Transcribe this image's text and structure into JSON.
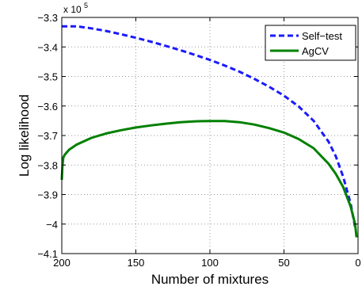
{
  "chart_data": {
    "type": "line",
    "xlabel": "Number of mixtures",
    "ylabel": "Log likelihood",
    "y_multiplier_label": "x 10",
    "y_multiplier_exponent": "5",
    "xlim": [
      200,
      0
    ],
    "x_reversed": true,
    "ylim": [
      -4.1,
      -3.3
    ],
    "xticks": [
      200,
      150,
      100,
      50,
      0
    ],
    "yticks": [
      -3.3,
      -3.4,
      -3.5,
      -3.6,
      -3.7,
      -3.8,
      -3.9,
      -4,
      -4.1
    ],
    "xtick_labels": [
      "200",
      "150",
      "100",
      "50",
      "0"
    ],
    "ytick_labels": [
      "-3.3",
      "-3.4",
      "-3.5",
      "-3.6",
      "-3.7",
      "-3.8",
      "-3.9",
      "-4",
      "-4.1"
    ],
    "grid": true,
    "legend_position": "top-right",
    "series": [
      {
        "name": "Self-test",
        "color": "#1a1aff",
        "style": "dashed",
        "x": [
          200,
          190,
          180,
          170,
          160,
          150,
          140,
          130,
          120,
          110,
          100,
          90,
          80,
          70,
          60,
          50,
          40,
          30,
          20,
          15,
          10,
          5,
          2
        ],
        "y": [
          -3.33,
          -3.33,
          -3.337,
          -3.346,
          -3.357,
          -3.369,
          -3.382,
          -3.396,
          -3.411,
          -3.427,
          -3.444,
          -3.463,
          -3.484,
          -3.508,
          -3.535,
          -3.565,
          -3.602,
          -3.65,
          -3.72,
          -3.77,
          -3.84,
          -3.93,
          -4.01
        ]
      },
      {
        "name": "AgCV",
        "color": "#008000",
        "style": "solid",
        "x": [
          200,
          199.5,
          199,
          198,
          195,
          190,
          180,
          170,
          160,
          150,
          140,
          130,
          120,
          110,
          100,
          90,
          80,
          70,
          60,
          50,
          40,
          30,
          20,
          15,
          10,
          5,
          2,
          1
        ],
        "y": [
          -3.85,
          -3.8,
          -3.775,
          -3.765,
          -3.748,
          -3.731,
          -3.708,
          -3.693,
          -3.682,
          -3.673,
          -3.666,
          -3.66,
          -3.655,
          -3.652,
          -3.651,
          -3.651,
          -3.655,
          -3.663,
          -3.675,
          -3.69,
          -3.712,
          -3.743,
          -3.795,
          -3.83,
          -3.875,
          -3.94,
          -4.0,
          -4.045
        ]
      }
    ]
  }
}
